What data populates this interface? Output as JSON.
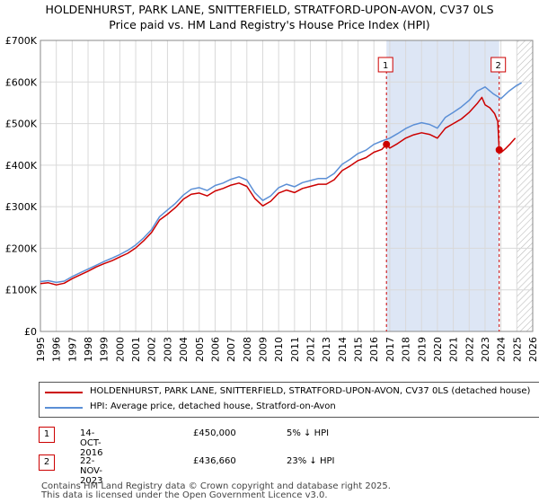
{
  "title_line1": "HOLDENHURST, PARK LANE, SNITTERFIELD, STRATFORD-UPON-AVON, CV37 0LS",
  "title_line2": "Price paid vs. HM Land Registry's House Price Index (HPI)",
  "colors": {
    "property": "#cc0000",
    "hpi": "#5b8fd6",
    "shade": "#dde6f5",
    "marker_line": "#cc0000"
  },
  "chart_data": {
    "type": "line",
    "x_range": [
      1995,
      2026
    ],
    "ylim": [
      0,
      700000
    ],
    "y_ticks": [
      {
        "value": 0,
        "label": "£0"
      },
      {
        "value": 100000,
        "label": "£100K"
      },
      {
        "value": 200000,
        "label": "£200K"
      },
      {
        "value": 300000,
        "label": "£300K"
      },
      {
        "value": 400000,
        "label": "£400K"
      },
      {
        "value": 500000,
        "label": "£500K"
      },
      {
        "value": 600000,
        "label": "£600K"
      },
      {
        "value": 700000,
        "label": "£700K"
      }
    ],
    "x_ticks": [
      "1995",
      "1996",
      "1997",
      "1998",
      "1999",
      "2000",
      "2001",
      "2002",
      "2003",
      "2004",
      "2005",
      "2006",
      "2007",
      "2008",
      "2009",
      "2010",
      "2011",
      "2012",
      "2013",
      "2014",
      "2015",
      "2016",
      "2017",
      "2018",
      "2019",
      "2020",
      "2021",
      "2022",
      "2023",
      "2024",
      "2025",
      "2026"
    ],
    "shaded_region": [
      2016.79,
      2023.89
    ],
    "forecast_start": 2025.0,
    "series": [
      {
        "name": "HOLDENHURST, PARK LANE, SNITTERFIELD, STRATFORD-UPON-AVON, CV37 0LS (detached house)",
        "x": [
          1995.0,
          1995.5,
          1996.0,
          1996.5,
          1997.0,
          1997.5,
          1998.0,
          1998.5,
          1999.0,
          1999.5,
          2000.0,
          2000.5,
          2001.0,
          2001.5,
          2002.0,
          2002.5,
          2003.0,
          2003.5,
          2004.0,
          2004.5,
          2005.0,
          2005.5,
          2006.0,
          2006.5,
          2007.0,
          2007.5,
          2008.0,
          2008.5,
          2009.0,
          2009.5,
          2010.0,
          2010.5,
          2011.0,
          2011.5,
          2012.0,
          2012.5,
          2013.0,
          2013.5,
          2014.0,
          2014.5,
          2015.0,
          2015.5,
          2016.0,
          2016.5,
          2016.79,
          2017.0,
          2017.5,
          2018.0,
          2018.5,
          2019.0,
          2019.5,
          2020.0,
          2020.5,
          2021.0,
          2021.5,
          2022.0,
          2022.5,
          2022.8,
          2023.0,
          2023.3,
          2023.6,
          2023.8,
          2023.89,
          2024.0,
          2024.3,
          2024.6,
          2024.9
        ],
        "values": [
          115000,
          117000,
          112000,
          116000,
          127000,
          136000,
          145000,
          155000,
          163000,
          170000,
          179000,
          188000,
          201000,
          218000,
          238000,
          268000,
          282000,
          298000,
          318000,
          330000,
          333000,
          326000,
          338000,
          344000,
          352000,
          357000,
          349000,
          320000,
          302000,
          313000,
          333000,
          340000,
          334000,
          344000,
          349000,
          354000,
          354000,
          365000,
          387000,
          398000,
          411000,
          418000,
          431000,
          438000,
          450000,
          441000,
          452000,
          465000,
          473000,
          478000,
          474000,
          465000,
          489000,
          500000,
          511000,
          527000,
          548000,
          563000,
          545000,
          538000,
          524000,
          505000,
          436660,
          430000,
          440000,
          452000,
          465000
        ]
      },
      {
        "name": "HPI: Average price, detached house, Stratford-on-Avon",
        "x": [
          1995.0,
          1995.5,
          1996.0,
          1996.5,
          1997.0,
          1997.5,
          1998.0,
          1998.5,
          1999.0,
          1999.5,
          2000.0,
          2000.5,
          2001.0,
          2001.5,
          2002.0,
          2002.5,
          2003.0,
          2003.5,
          2004.0,
          2004.5,
          2005.0,
          2005.5,
          2006.0,
          2006.5,
          2007.0,
          2007.5,
          2008.0,
          2008.5,
          2009.0,
          2009.5,
          2010.0,
          2010.5,
          2011.0,
          2011.5,
          2012.0,
          2012.5,
          2013.0,
          2013.5,
          2014.0,
          2014.5,
          2015.0,
          2015.5,
          2016.0,
          2016.5,
          2017.0,
          2017.5,
          2018.0,
          2018.5,
          2019.0,
          2019.5,
          2020.0,
          2020.5,
          2021.0,
          2021.5,
          2022.0,
          2022.5,
          2023.0,
          2023.5,
          2024.0,
          2024.5,
          2025.0,
          2025.3
        ],
        "values": [
          120000,
          122000,
          118000,
          121000,
          132000,
          141000,
          150000,
          159000,
          168000,
          176000,
          185000,
          195000,
          208000,
          225000,
          245000,
          276000,
          292000,
          308000,
          328000,
          342000,
          346000,
          339000,
          351000,
          357000,
          366000,
          372000,
          364000,
          334000,
          315000,
          326000,
          346000,
          354000,
          348000,
          358000,
          363000,
          368000,
          368000,
          380000,
          402000,
          414000,
          428000,
          436000,
          450000,
          458000,
          465000,
          476000,
          488000,
          497000,
          502000,
          498000,
          489000,
          515000,
          527000,
          540000,
          556000,
          578000,
          588000,
          572000,
          560000,
          578000,
          592000,
          598000
        ]
      }
    ],
    "sales": [
      {
        "label": "1",
        "x": 2016.79,
        "value": 450000
      },
      {
        "label": "2",
        "x": 2023.89,
        "value": 436660
      }
    ]
  },
  "legend": {
    "property_label": "HOLDENHURST, PARK LANE, SNITTERFIELD, STRATFORD-UPON-AVON, CV37 0LS (detached house)",
    "hpi_label": "HPI: Average price, detached house, Stratford-on-Avon"
  },
  "transactions": [
    {
      "num": "1",
      "date": "14-OCT-2016",
      "price": "£450,000",
      "hpi": "5% ↓ HPI"
    },
    {
      "num": "2",
      "date": "22-NOV-2023",
      "price": "£436,660",
      "hpi": "23% ↓ HPI"
    }
  ],
  "footer_line1": "Contains HM Land Registry data © Crown copyright and database right 2025.",
  "footer_line2": "This data is licensed under the Open Government Licence v3.0."
}
